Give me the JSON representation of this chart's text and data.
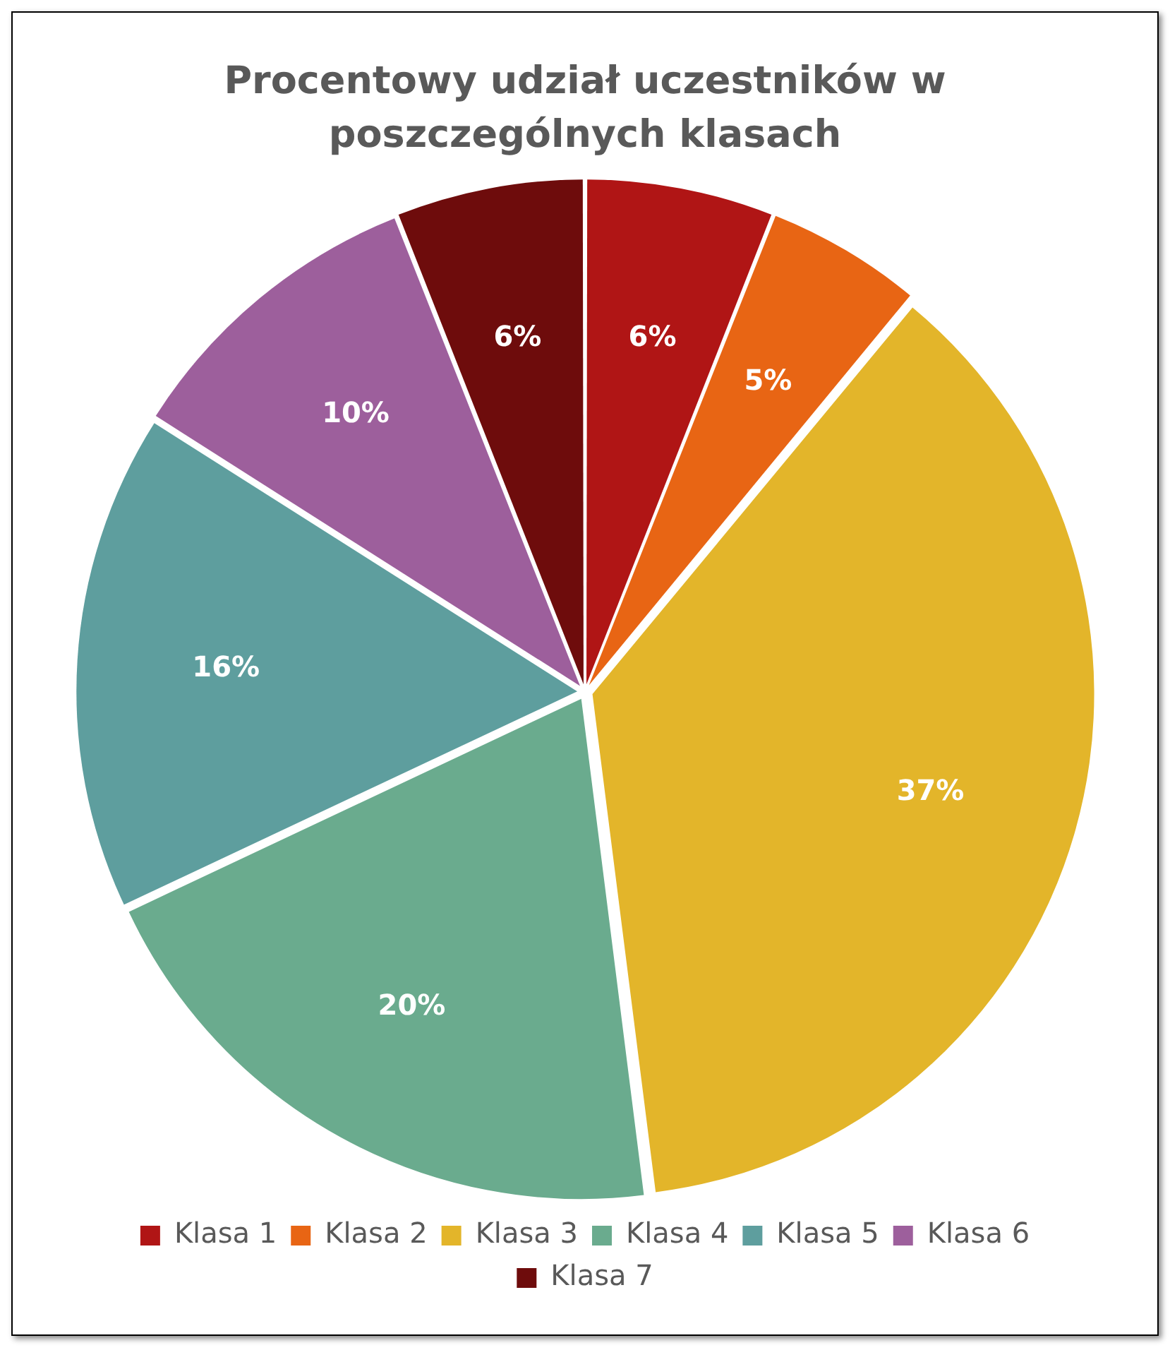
{
  "chart_data": {
    "type": "pie",
    "title": "Procentowy udział uczestników w poszczególnych klasach",
    "categories": [
      "Klasa 1",
      "Klasa 2",
      "Klasa 3",
      "Klasa 4",
      "Klasa 5",
      "Klasa 6",
      "Klasa 7"
    ],
    "values": [
      6,
      5,
      37,
      20,
      16,
      10,
      6
    ],
    "value_labels": [
      "6%",
      "5%",
      "37%",
      "20%",
      "16%",
      "10%",
      "6%"
    ],
    "colors": [
      "#b01515",
      "#e86514",
      "#e3b52a",
      "#6aab8e",
      "#5e9e9e",
      "#9d5f9c",
      "#6e0c0c"
    ],
    "legend": "bottom"
  }
}
